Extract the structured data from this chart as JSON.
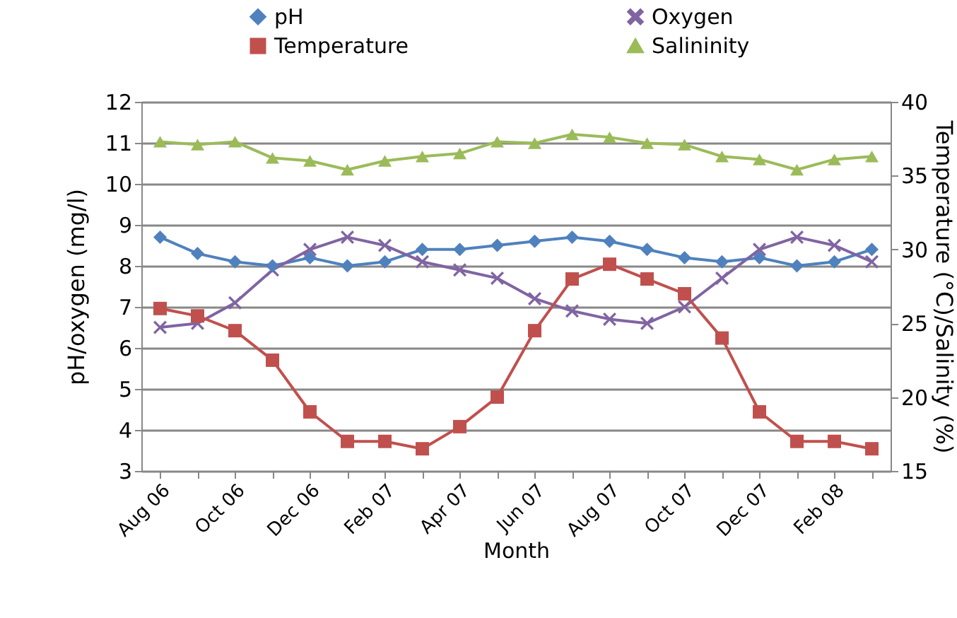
{
  "chart_data": {
    "type": "line",
    "xlabel": "Month",
    "ylabel": "pH/oxygen (mg/l)",
    "y2label": "Temperature (°C)/Salinity (%)",
    "categories": [
      "Aug 06",
      null,
      "Oct 06",
      null,
      "Dec 06",
      null,
      "Feb 07",
      null,
      "Apr 07",
      null,
      "Jun 07",
      null,
      "Aug 07",
      null,
      "Oct 07",
      null,
      "Dec 07",
      null,
      "Feb 08",
      null
    ],
    "series": [
      {
        "name": "pH",
        "color": "#4f81bd",
        "marker": "diamond",
        "values": [
          8.7,
          8.3,
          8.1,
          8.0,
          8.2,
          8.0,
          8.1,
          8.4,
          8.4,
          8.5,
          8.6,
          8.7,
          8.6,
          8.4,
          8.2,
          8.1,
          8.2,
          8.0,
          8.1,
          8.4
        ]
      },
      {
        "name": "Oxygen",
        "color": "#8064a2",
        "marker": "cross",
        "values": [
          6.5,
          6.6,
          7.1,
          7.9,
          8.4,
          8.7,
          8.5,
          8.1,
          7.9,
          7.7,
          7.2,
          6.9,
          6.7,
          6.6,
          7.0,
          7.7,
          8.4,
          8.7,
          8.5,
          8.1
        ]
      },
      {
        "name": "Temperature",
        "color": "#c0504d",
        "marker": "square",
        "axis": "y2",
        "values": [
          26,
          25.5,
          24.5,
          22.5,
          19,
          17,
          17,
          16.5,
          18,
          20,
          24.5,
          28,
          29,
          28,
          27,
          24,
          19,
          17,
          17,
          16.5
        ]
      },
      {
        "name": "Salininity",
        "color": "#9bbb59",
        "marker": "triangle",
        "axis": "y2",
        "values": [
          37.3,
          37.1,
          37.3,
          36.2,
          36.0,
          35.4,
          36.0,
          36.3,
          36.5,
          37.3,
          37.2,
          37.8,
          37.6,
          37.2,
          37.1,
          36.3,
          36.1,
          35.4,
          36.1,
          36.3
        ]
      }
    ],
    "ylim": [
      3,
      12
    ],
    "yticks": [
      3,
      4,
      5,
      6,
      7,
      8,
      9,
      10,
      11,
      12
    ],
    "y2lim": [
      15,
      40
    ],
    "y2ticks": [
      15,
      20,
      25,
      30,
      35,
      40
    ],
    "grid": "y",
    "legend": "top"
  }
}
